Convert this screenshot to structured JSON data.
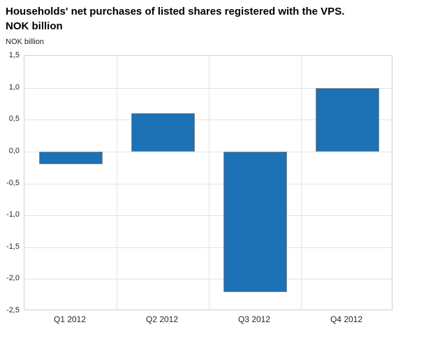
{
  "header": {
    "title_line1": "Households' net purchases of listed shares registered with the VPS.",
    "title_line2": "NOK billion",
    "unit_label": "NOK billion"
  },
  "chart_data": {
    "type": "bar",
    "title": "Households' net purchases of listed shares registered with the VPS. NOK billion",
    "categories": [
      "Q1 2012",
      "Q2 2012",
      "Q3 2012",
      "Q4 2012"
    ],
    "values": [
      -0.2,
      0.6,
      -2.2,
      1.0
    ],
    "xlabel": "",
    "ylabel": "NOK billion",
    "ylim": [
      -2.5,
      1.5
    ],
    "ytick_values": [
      1.5,
      1.0,
      0.5,
      0.0,
      -0.5,
      -1.0,
      -1.5,
      -2.0,
      -2.5
    ],
    "ytick_labels": [
      "1,5",
      "1,0",
      "0,5",
      "0,0",
      "-0,5",
      "-1,0",
      "-1,5",
      "-2,0",
      "-2,5"
    ],
    "grid": true,
    "legend": "none",
    "colors": {
      "bar_fill": "#1d71b5",
      "bar_border": "#8a8a8a",
      "gridline": "#e3e3e3",
      "plot_border": "#cfcfcf",
      "text": "#262626",
      "title_text": "#000000",
      "background": "#ffffff"
    }
  }
}
